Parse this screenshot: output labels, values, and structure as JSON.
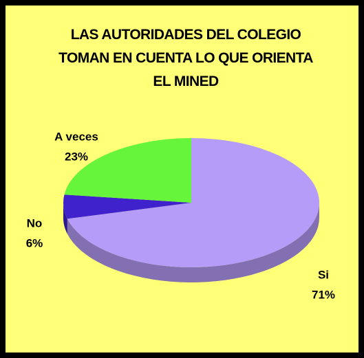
{
  "chart_data": {
    "type": "pie",
    "title": "LAS AUTORIDADES DEL COLEGIO\nTOMAN EN CUENTA LO QUE ORIENTA\nEL MINED",
    "categories": [
      "Si",
      "No",
      "A veces"
    ],
    "values": [
      71,
      6,
      23
    ],
    "value_labels": [
      "71%",
      "6%",
      "23%"
    ],
    "colors": [
      "#b49cf8",
      "#3f22cc",
      "#66f53a"
    ]
  }
}
